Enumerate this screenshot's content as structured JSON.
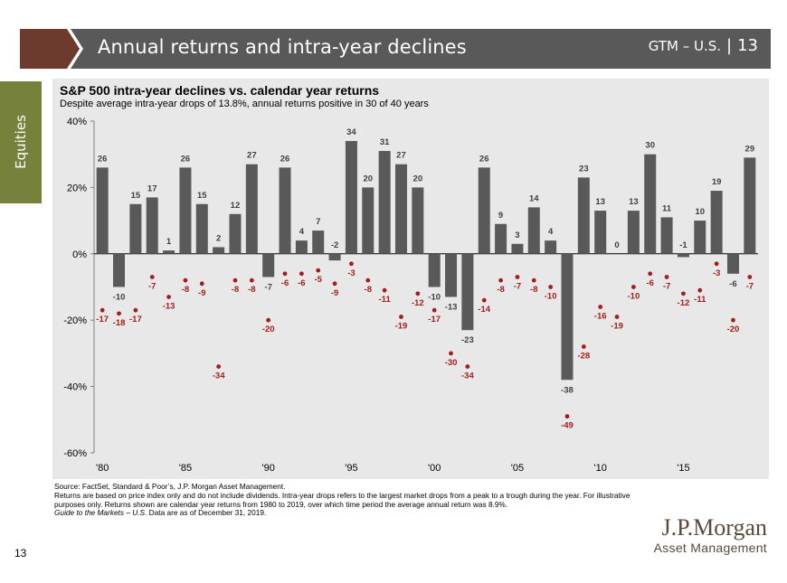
{
  "header": {
    "title": "Annual returns and intra-year declines",
    "section": "GTM – U.S.",
    "separator": "|",
    "page": "13"
  },
  "side_tab": {
    "label": "Equities"
  },
  "colors": {
    "header_bg": "#595959",
    "chevron": "#6d3b2e",
    "side_tab": "#76813b",
    "bar": "#595959",
    "dot": "#a51c1c",
    "panel": "#e8e8e8"
  },
  "chart_data": {
    "type": "bar",
    "title": "S&P 500 intra-year declines vs. calendar year returns",
    "subtitle": "Despite average intra-year drops of 13.8%, annual returns positive in 30 of 40 years",
    "ylim": [
      -60,
      40
    ],
    "yticks": [
      40,
      20,
      0,
      -20,
      -40,
      -60
    ],
    "ytick_labels": [
      "40%",
      "20%",
      "0%",
      "-20%",
      "-40%",
      "-60%"
    ],
    "xtick_labels": [
      "'80",
      "'85",
      "'90",
      "'95",
      "'00",
      "'05",
      "'10",
      "'15"
    ],
    "years": [
      1980,
      1981,
      1982,
      1983,
      1984,
      1985,
      1986,
      1987,
      1988,
      1989,
      1990,
      1991,
      1992,
      1993,
      1994,
      1995,
      1996,
      1997,
      1998,
      1999,
      2000,
      2001,
      2002,
      2003,
      2004,
      2005,
      2006,
      2007,
      2008,
      2009,
      2010,
      2011,
      2012,
      2013,
      2014,
      2015,
      2016,
      2017,
      2018,
      2019
    ],
    "series": [
      {
        "name": "Calendar year return",
        "values": [
          26,
          -10,
          15,
          17,
          1,
          26,
          15,
          2,
          12,
          27,
          -7,
          26,
          4,
          7,
          -2,
          34,
          20,
          31,
          27,
          20,
          -10,
          -13,
          -23,
          26,
          9,
          3,
          14,
          4,
          -38,
          23,
          13,
          0,
          13,
          30,
          11,
          -1,
          10,
          19,
          -6,
          29
        ]
      },
      {
        "name": "Intra-year decline",
        "values": [
          -17,
          -18,
          -17,
          -7,
          -13,
          -8,
          -9,
          -34,
          -8,
          -8,
          -20,
          -6,
          -6,
          -5,
          -9,
          -3,
          -8,
          -11,
          -19,
          -12,
          -17,
          -30,
          -34,
          -14,
          -8,
          -7,
          -8,
          -10,
          -49,
          -28,
          -16,
          -19,
          -10,
          -6,
          -7,
          -12,
          -11,
          -3,
          -20,
          -7
        ]
      }
    ]
  },
  "footnotes": {
    "source": "Source: FactSet, Standard & Poor’s, J.P. Morgan Asset Management.",
    "note": "Returns are based on price index only and do not include dividends. Intra-year drops refers to the largest market drops from a peak to a trough during the year. For illustrative purposes only. Returns shown are calendar year returns from 1980 to 2019, over which time period the average annual return was 8.9%.",
    "guide_title": "Guide to the Markets – U.S.",
    "guide_suffix": " Data are as of December 31, 2019."
  },
  "page_number": "13",
  "logo": {
    "line1": "J.P.Morgan",
    "line2": "Asset Management"
  }
}
